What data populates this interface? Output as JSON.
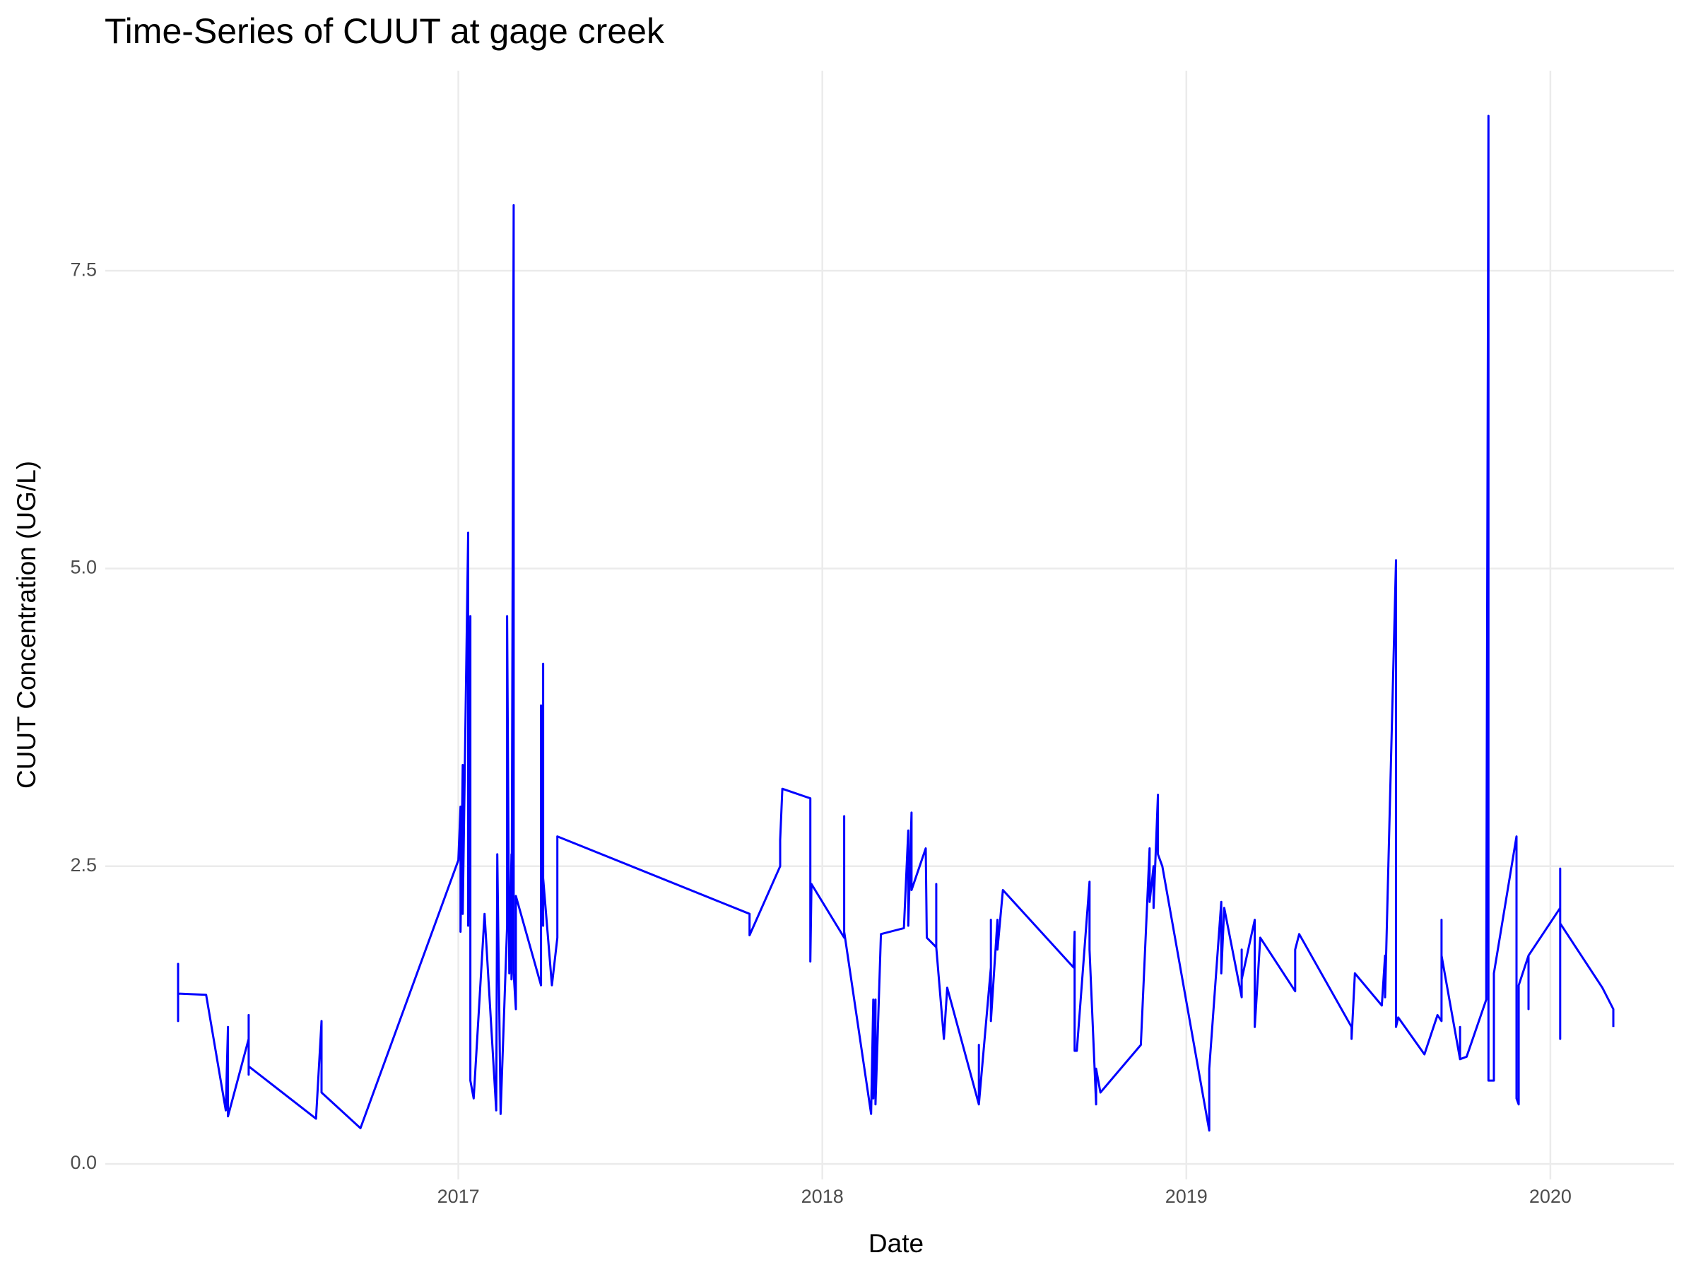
{
  "chart_data": {
    "type": "line",
    "title": "Time-Series of CUUT at gage creek",
    "x_label": "Date",
    "y_label": "CUUT Concentration (UG/L)",
    "xlim": [
      2016.03,
      2020.34
    ],
    "ylim": [
      -0.13,
      9.18
    ],
    "xticks": [
      2017,
      2018,
      2019,
      2020
    ],
    "yticks": [
      {
        "value": 0,
        "label": "0.0"
      },
      2.5,
      {
        "value": 5,
        "label": "5.0"
      },
      7.5
    ],
    "grid": true,
    "series": [
      {
        "name": "CUUT",
        "color": "#0000ff",
        "x": [
          2016.23,
          2016.23,
          2016.23,
          2016.23,
          2016.307,
          2016.361,
          2016.367,
          2016.367,
          2016.424,
          2016.424,
          2016.424,
          2016.424,
          2016.609,
          2016.624,
          2016.624,
          2016.731,
          2017.0,
          2017.006,
          2017.006,
          2017.012,
          2017.012,
          2017.027,
          2017.027,
          2017.033,
          2017.033,
          2017.042,
          2017.072,
          2017.104,
          2017.107,
          2017.116,
          2017.134,
          2017.134,
          2017.14,
          2017.146,
          2017.146,
          2017.152,
          2017.152,
          2017.158,
          2017.158,
          2017.227,
          2017.227,
          2017.233,
          2017.233,
          2017.233,
          2017.257,
          2017.272,
          2017.272,
          2017.8,
          2017.8,
          2017.884,
          2017.884,
          2017.89,
          2017.967,
          2017.967,
          2017.97,
          2018.06,
          2018.06,
          2018.06,
          2018.134,
          2018.14,
          2018.14,
          2018.146,
          2018.146,
          2018.161,
          2018.224,
          2018.236,
          2018.236,
          2018.245,
          2018.245,
          2018.284,
          2018.287,
          2018.313,
          2018.313,
          2018.313,
          2018.334,
          2018.343,
          2018.43,
          2018.43,
          2018.43,
          2018.463,
          2018.463,
          2018.463,
          2018.481,
          2018.481,
          2018.496,
          2018.69,
          2018.693,
          2018.693,
          2018.699,
          2018.734,
          2018.734,
          2018.752,
          2018.752,
          2018.764,
          2018.875,
          2018.899,
          2018.899,
          2018.91,
          2018.91,
          2018.922,
          2018.922,
          2018.934,
          2019.063,
          2019.063,
          2019.096,
          2019.096,
          2019.104,
          2019.152,
          2019.152,
          2019.152,
          2019.188,
          2019.188,
          2019.203,
          2019.299,
          2019.299,
          2019.31,
          2019.454,
          2019.454,
          2019.463,
          2019.537,
          2019.546,
          2019.546,
          2019.576,
          2019.576,
          2019.582,
          2019.654,
          2019.69,
          2019.701,
          2019.701,
          2019.701,
          2019.752,
          2019.752,
          2019.752,
          2019.77,
          2019.824,
          2019.824,
          2019.83,
          2019.83,
          2019.845,
          2019.845,
          2019.907,
          2019.907,
          2019.913,
          2019.913,
          2019.94,
          2019.94,
          2019.94,
          2020.027,
          2020.027,
          2020.027,
          2020.027,
          2020.143,
          2020.173,
          2020.173
        ],
        "values": [
          1.45,
          1.68,
          1.2,
          1.43,
          1.42,
          0.45,
          1.15,
          0.4,
          1.05,
          1.25,
          0.75,
          0.82,
          0.38,
          1.2,
          0.6,
          0.3,
          2.55,
          3.0,
          1.95,
          3.35,
          2.1,
          5.3,
          2.0,
          4.6,
          0.7,
          0.55,
          2.1,
          0.45,
          2.6,
          0.42,
          2.0,
          4.6,
          1.6,
          2.6,
          1.55,
          8.05,
          1.6,
          1.3,
          2.25,
          1.5,
          3.85,
          2.0,
          4.2,
          2.4,
          1.5,
          1.9,
          2.75,
          2.1,
          1.92,
          2.5,
          2.72,
          3.15,
          3.07,
          1.7,
          2.35,
          1.9,
          2.92,
          1.95,
          0.42,
          1.38,
          0.55,
          1.38,
          0.5,
          1.93,
          1.98,
          2.8,
          2.0,
          2.95,
          2.3,
          2.65,
          1.9,
          1.82,
          2.35,
          1.82,
          1.05,
          1.48,
          0.5,
          1.0,
          0.5,
          1.65,
          2.05,
          1.2,
          2.05,
          1.8,
          2.3,
          1.65,
          1.95,
          0.95,
          0.95,
          2.37,
          1.8,
          0.5,
          0.8,
          0.6,
          1.0,
          2.65,
          2.2,
          2.5,
          2.15,
          3.1,
          2.6,
          2.5,
          0.28,
          0.8,
          2.2,
          1.6,
          2.15,
          1.4,
          1.8,
          1.55,
          2.05,
          1.15,
          1.9,
          1.45,
          1.8,
          1.93,
          1.15,
          1.05,
          1.6,
          1.33,
          1.75,
          1.4,
          5.07,
          1.15,
          1.23,
          0.92,
          1.25,
          1.2,
          2.05,
          1.75,
          0.88,
          1.15,
          0.88,
          0.9,
          1.38,
          1.65,
          8.8,
          0.7,
          0.7,
          1.6,
          2.75,
          0.55,
          0.5,
          1.5,
          1.75,
          1.3,
          1.75,
          2.15,
          2.48,
          1.05,
          2.02,
          1.48,
          1.3,
          1.15
        ]
      }
    ]
  }
}
